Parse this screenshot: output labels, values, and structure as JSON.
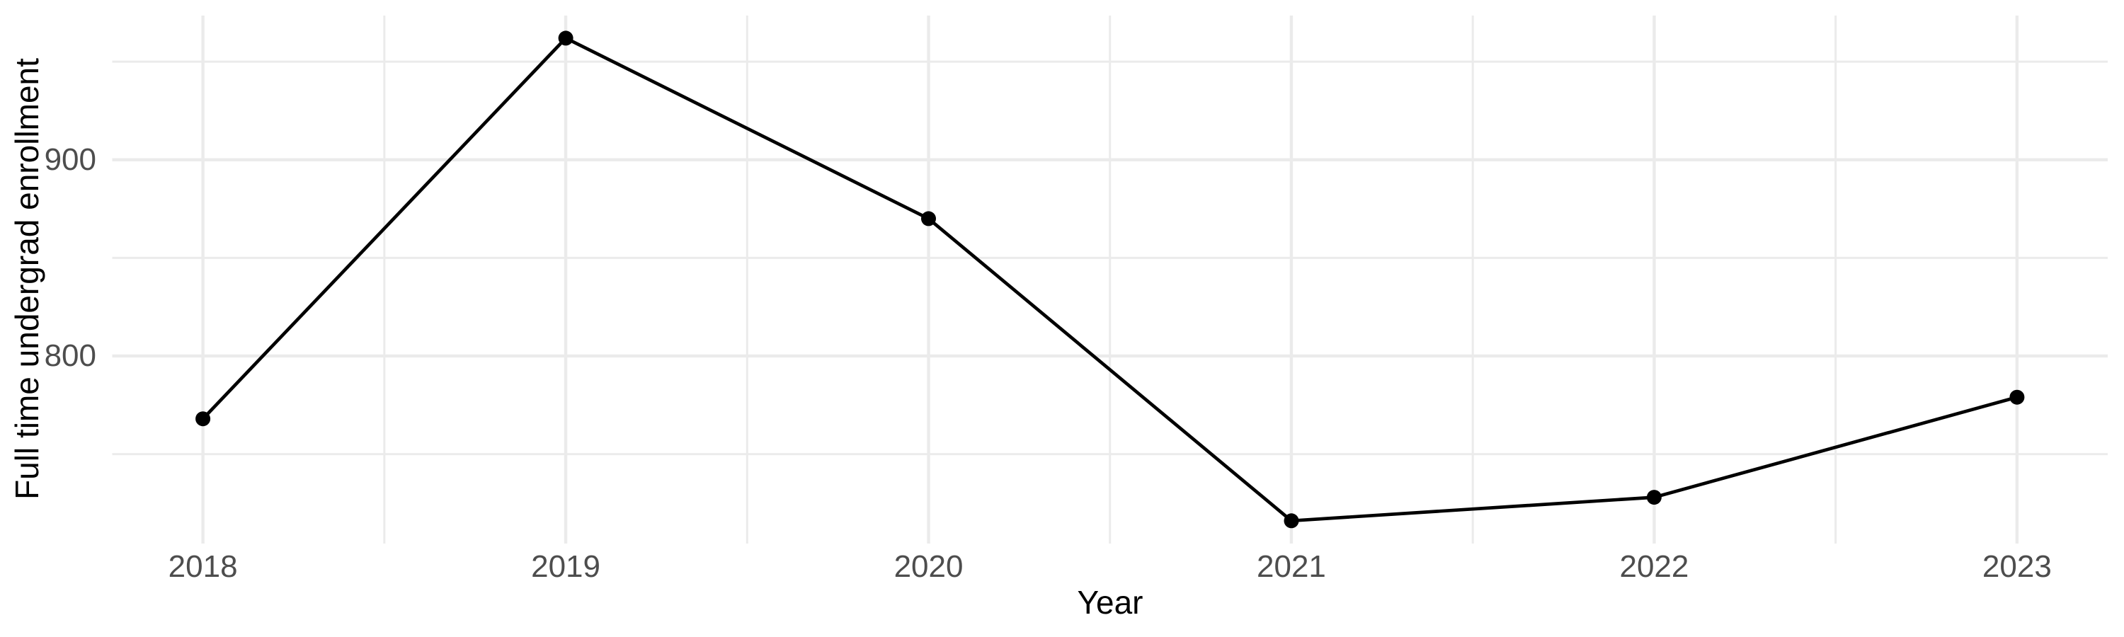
{
  "chart_data": {
    "type": "line",
    "xlabel": "Year",
    "ylabel": "Full time undergrad enrollment",
    "x": [
      2018,
      2019,
      2020,
      2021,
      2022,
      2023
    ],
    "y": [
      768,
      962,
      870,
      716,
      728,
      779
    ],
    "x_ticks": {
      "values": [
        2018,
        2019,
        2020,
        2021,
        2022,
        2023
      ],
      "labels": [
        "2018",
        "2019",
        "2020",
        "2021",
        "2022",
        "2023"
      ]
    },
    "y_ticks": {
      "values": [
        800,
        900
      ],
      "labels": [
        "800",
        "900"
      ]
    },
    "x_minor_gridlines": [
      2018.5,
      2019.5,
      2020.5,
      2021.5,
      2022.5
    ],
    "y_minor_gridlines": [
      750,
      850,
      950
    ],
    "xlim": [
      2017.75,
      2023.25
    ],
    "ylim": [
      704.4,
      973.5
    ],
    "grid": "major and minor gridlines, light gray on white, no axis lines",
    "legend": "none",
    "marker": "filled circle",
    "colors": {
      "line": "#000000",
      "point": "#000000",
      "grid": "#EBEBEB",
      "tick_label": "#4D4D4D",
      "axis_title": "#000000",
      "background": "#FFFFFF"
    }
  }
}
